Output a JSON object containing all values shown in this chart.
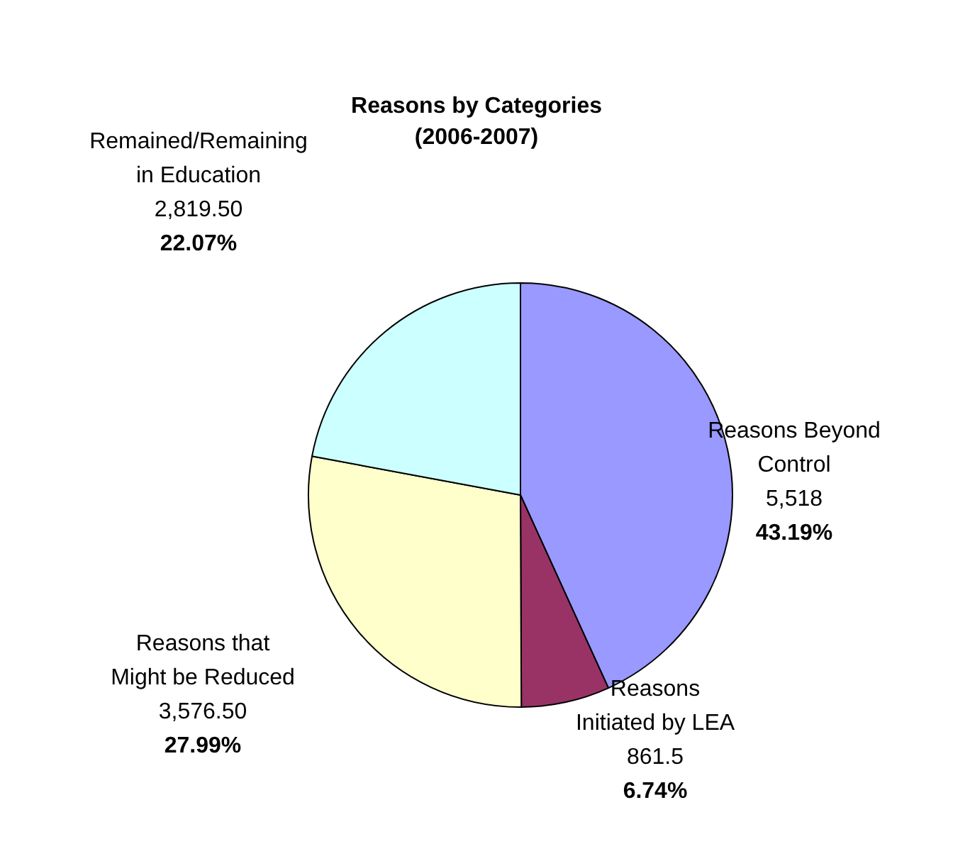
{
  "chart_data": {
    "type": "pie",
    "title": "Reasons by Categories\n(2006-2007)",
    "categories": [
      "Reasons Beyond\nControl",
      "Reasons\nInitiated by LEA",
      "Reasons that\nMight be Reduced",
      "Remained/Remaining\nin Education"
    ],
    "values": [
      5518,
      861.5,
      3576.5,
      2819.5
    ],
    "value_labels": [
      "5,518\n43.19%",
      "861.5\n6.74%",
      "3,576.50\n27.99%",
      "2,819.50\n22.07%"
    ],
    "colors": [
      "#9999ff",
      "#993366",
      "#ffffcc",
      "#ccffff"
    ],
    "legend": false
  }
}
